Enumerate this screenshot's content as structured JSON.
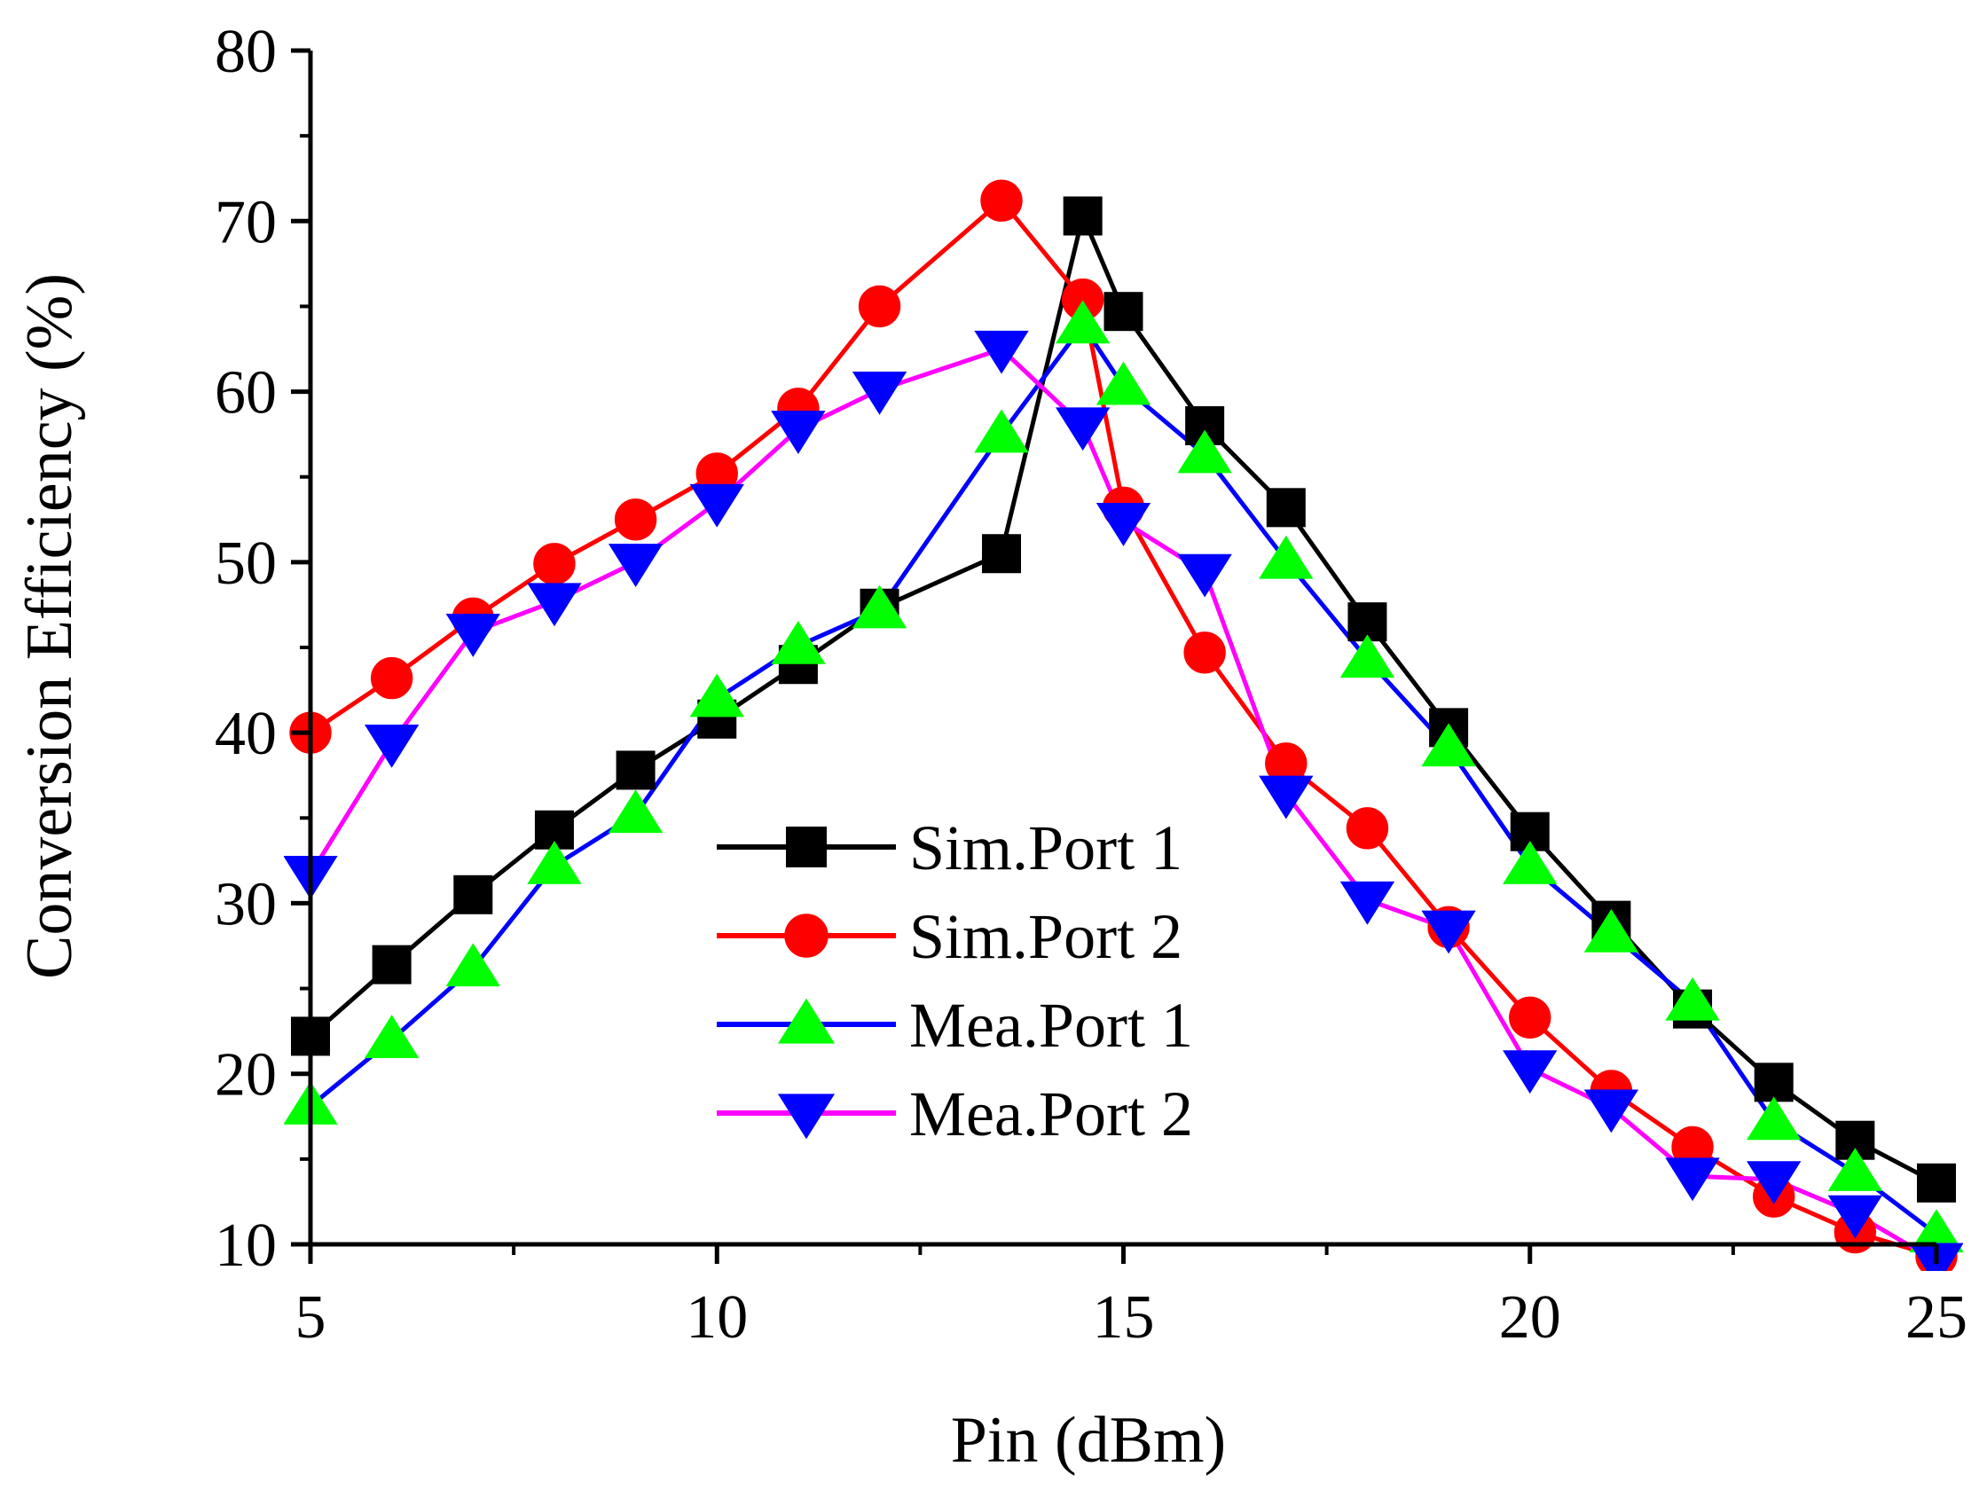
{
  "chart_data": {
    "type": "line",
    "title": "",
    "xlabel": "Pin (dBm)",
    "ylabel": "Conversion Efficiency (%)",
    "xlim": [
      5,
      25
    ],
    "ylim": [
      10,
      80
    ],
    "x_major_ticks": [
      5,
      10,
      15,
      20,
      25
    ],
    "x_minor_ticks": [
      7.5,
      12.5,
      17.5,
      22.5
    ],
    "y_major_ticks": [
      10,
      20,
      30,
      40,
      50,
      60,
      70,
      80
    ],
    "y_minor_ticks": [
      15,
      25,
      35,
      45,
      55,
      65,
      75
    ],
    "x_tick_labels": [
      "5",
      "10",
      "15",
      "20",
      "25"
    ],
    "y_tick_labels": [
      "10",
      "20",
      "30",
      "40",
      "50",
      "60",
      "70",
      "80"
    ],
    "legend_position": "center",
    "series": [
      {
        "name": "Sim.Port 1",
        "color": "#000000",
        "marker": "square",
        "x": [
          5,
          6,
          7,
          8,
          9,
          10,
          11,
          12,
          13.5,
          14.5,
          15,
          16,
          17,
          18,
          19,
          20,
          21,
          22,
          23,
          24,
          25
        ],
        "y": [
          22.2,
          26.4,
          30.5,
          34.3,
          37.8,
          40.8,
          44.0,
          47.3,
          50.5,
          70.3,
          64.7,
          58.0,
          53.2,
          46.5,
          40.3,
          34.2,
          29.0,
          23.8,
          19.5,
          16.1,
          13.6
        ]
      },
      {
        "name": "Sim.Port 2",
        "color": "#ff0000",
        "marker": "circle",
        "x": [
          5,
          6,
          7,
          8,
          9,
          10,
          11,
          12,
          13.5,
          14.5,
          15,
          16,
          17,
          18,
          19,
          20,
          21,
          22,
          23,
          24,
          25
        ],
        "y": [
          40.0,
          43.2,
          46.7,
          49.9,
          52.5,
          55.2,
          59.0,
          65.0,
          71.2,
          65.4,
          53.2,
          44.7,
          38.2,
          34.4,
          28.6,
          23.3,
          19.0,
          15.7,
          12.8,
          10.7,
          9.3
        ]
      },
      {
        "name": "Mea.Port 1",
        "color": "#0000ff",
        "marker": "triangle-up",
        "marker_fill": "#00ff00",
        "x": [
          5,
          6,
          7,
          8,
          9,
          10,
          11,
          12,
          13.5,
          14.5,
          15,
          16,
          17,
          18,
          19,
          20,
          21,
          22,
          23,
          24,
          25
        ],
        "y": [
          18.1,
          22.0,
          26.2,
          32.2,
          35.2,
          42.0,
          45.1,
          47.2,
          57.5,
          63.9,
          60.3,
          56.3,
          50.1,
          44.3,
          39.1,
          32.2,
          28.2,
          24.2,
          17.2,
          14.2,
          10.6
        ]
      },
      {
        "name": "Mea.Port 2",
        "color": "#ff00ff",
        "marker": "triangle-down",
        "marker_fill": "#0000ff",
        "x": [
          5,
          6,
          7,
          8,
          9,
          10,
          11,
          12,
          13.5,
          14.5,
          15,
          16,
          17,
          18,
          19,
          20,
          21,
          22,
          23,
          24,
          25
        ],
        "y": [
          31.7,
          39.4,
          45.9,
          47.7,
          50.0,
          53.5,
          57.8,
          60.1,
          62.5,
          58.0,
          52.4,
          49.4,
          36.4,
          30.2,
          28.5,
          20.3,
          18.0,
          14.0,
          13.8,
          11.8,
          9.0
        ]
      }
    ]
  }
}
